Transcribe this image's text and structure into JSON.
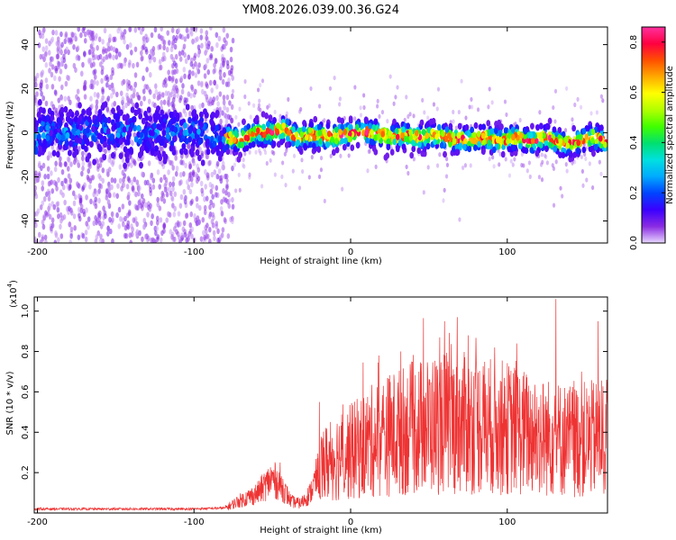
{
  "title": "YM08.2026.039.00.36.G24",
  "chart_data": [
    {
      "type": "heatmap",
      "name": "spectrogram",
      "xlabel": "Height of straight line (km)",
      "ylabel": "Frequency (Hz)",
      "xlim": [
        -202,
        164
      ],
      "ylim": [
        -50,
        48
      ],
      "xticks": [
        -200,
        -100,
        0,
        100
      ],
      "yticks": [
        -40,
        -20,
        0,
        20,
        40
      ],
      "colorbar": {
        "label": "Normalized spectral amplitude",
        "range": [
          0,
          0.86
        ],
        "ticks": [
          0.0,
          0.2,
          0.4,
          0.6,
          0.8
        ],
        "colors": [
          "#e8d8ff",
          "#8a2be2",
          "#3a00ff",
          "#0044ff",
          "#00aaff",
          "#00e0e0",
          "#00e070",
          "#40ff00",
          "#b0ff00",
          "#ffff00",
          "#ffaa00",
          "#ff5000",
          "#ff0040",
          "#ff30a0"
        ]
      },
      "ridge_points": [
        {
          "x": -200,
          "f": 1
        },
        {
          "x": -180,
          "f": 0
        },
        {
          "x": -160,
          "f": 1
        },
        {
          "x": -140,
          "f": 0
        },
        {
          "x": -120,
          "f": 0
        },
        {
          "x": -100,
          "f": 1
        },
        {
          "x": -80,
          "f": -2
        },
        {
          "x": -70,
          "f": -3
        },
        {
          "x": -60,
          "f": 0
        },
        {
          "x": -50,
          "f": 0
        },
        {
          "x": -42,
          "f": 2
        },
        {
          "x": -35,
          "f": -2
        },
        {
          "x": -25,
          "f": -1
        },
        {
          "x": -15,
          "f": -2
        },
        {
          "x": -5,
          "f": -1
        },
        {
          "x": 5,
          "f": 0
        },
        {
          "x": 15,
          "f": 0
        },
        {
          "x": 25,
          "f": -2
        },
        {
          "x": 35,
          "f": -1
        },
        {
          "x": 45,
          "f": -2
        },
        {
          "x": 55,
          "f": -1
        },
        {
          "x": 65,
          "f": -3
        },
        {
          "x": 75,
          "f": -3
        },
        {
          "x": 85,
          "f": -2
        },
        {
          "x": 95,
          "f": -4
        },
        {
          "x": 105,
          "f": -2
        },
        {
          "x": 115,
          "f": -4
        },
        {
          "x": 125,
          "f": -2
        },
        {
          "x": 135,
          "f": -5
        },
        {
          "x": 145,
          "f": -4
        },
        {
          "x": 155,
          "f": -2
        },
        {
          "x": 164,
          "f": -4
        }
      ],
      "noise_region_xmax": -80
    },
    {
      "type": "line",
      "name": "snr",
      "xlabel": "Height of straight line (km)",
      "ylabel": "SNR (10 * v/v)",
      "multiplier_label": "(x10",
      "multiplier_exponent": "4",
      "xlim": [
        -202,
        164
      ],
      "ylim": [
        0,
        1.07
      ],
      "xticks": [
        -200,
        -100,
        0,
        100
      ],
      "yticks": [
        0.2,
        0.4,
        0.6,
        0.8,
        1.0
      ],
      "color": "#ee3333",
      "envelope": [
        {
          "x": -202,
          "y": 0.02
        },
        {
          "x": -100,
          "y": 0.02
        },
        {
          "x": -80,
          "y": 0.025
        },
        {
          "x": -72,
          "y": 0.06
        },
        {
          "x": -60,
          "y": 0.1
        },
        {
          "x": -50,
          "y": 0.18
        },
        {
          "x": -44,
          "y": 0.14
        },
        {
          "x": -38,
          "y": 0.06
        },
        {
          "x": -32,
          "y": 0.05
        },
        {
          "x": -26,
          "y": 0.1
        },
        {
          "x": -20,
          "y": 0.22
        },
        {
          "x": -10,
          "y": 0.28
        },
        {
          "x": 0,
          "y": 0.3
        },
        {
          "x": 20,
          "y": 0.38
        },
        {
          "x": 40,
          "y": 0.42
        },
        {
          "x": 60,
          "y": 0.45
        },
        {
          "x": 80,
          "y": 0.44
        },
        {
          "x": 100,
          "y": 0.42
        },
        {
          "x": 120,
          "y": 0.38
        },
        {
          "x": 140,
          "y": 0.36
        },
        {
          "x": 164,
          "y": 0.37
        }
      ],
      "spikes": [
        {
          "x": -45,
          "y": 0.25
        },
        {
          "x": -20,
          "y": 0.55
        },
        {
          "x": 18,
          "y": 0.78
        },
        {
          "x": 32,
          "y": 0.8
        },
        {
          "x": 60,
          "y": 0.95
        },
        {
          "x": 68,
          "y": 0.97
        },
        {
          "x": 75,
          "y": 0.88
        },
        {
          "x": 92,
          "y": 0.82
        },
        {
          "x": 106,
          "y": 0.84
        },
        {
          "x": 131,
          "y": 1.06
        },
        {
          "x": 158,
          "y": 0.95
        }
      ]
    }
  ]
}
